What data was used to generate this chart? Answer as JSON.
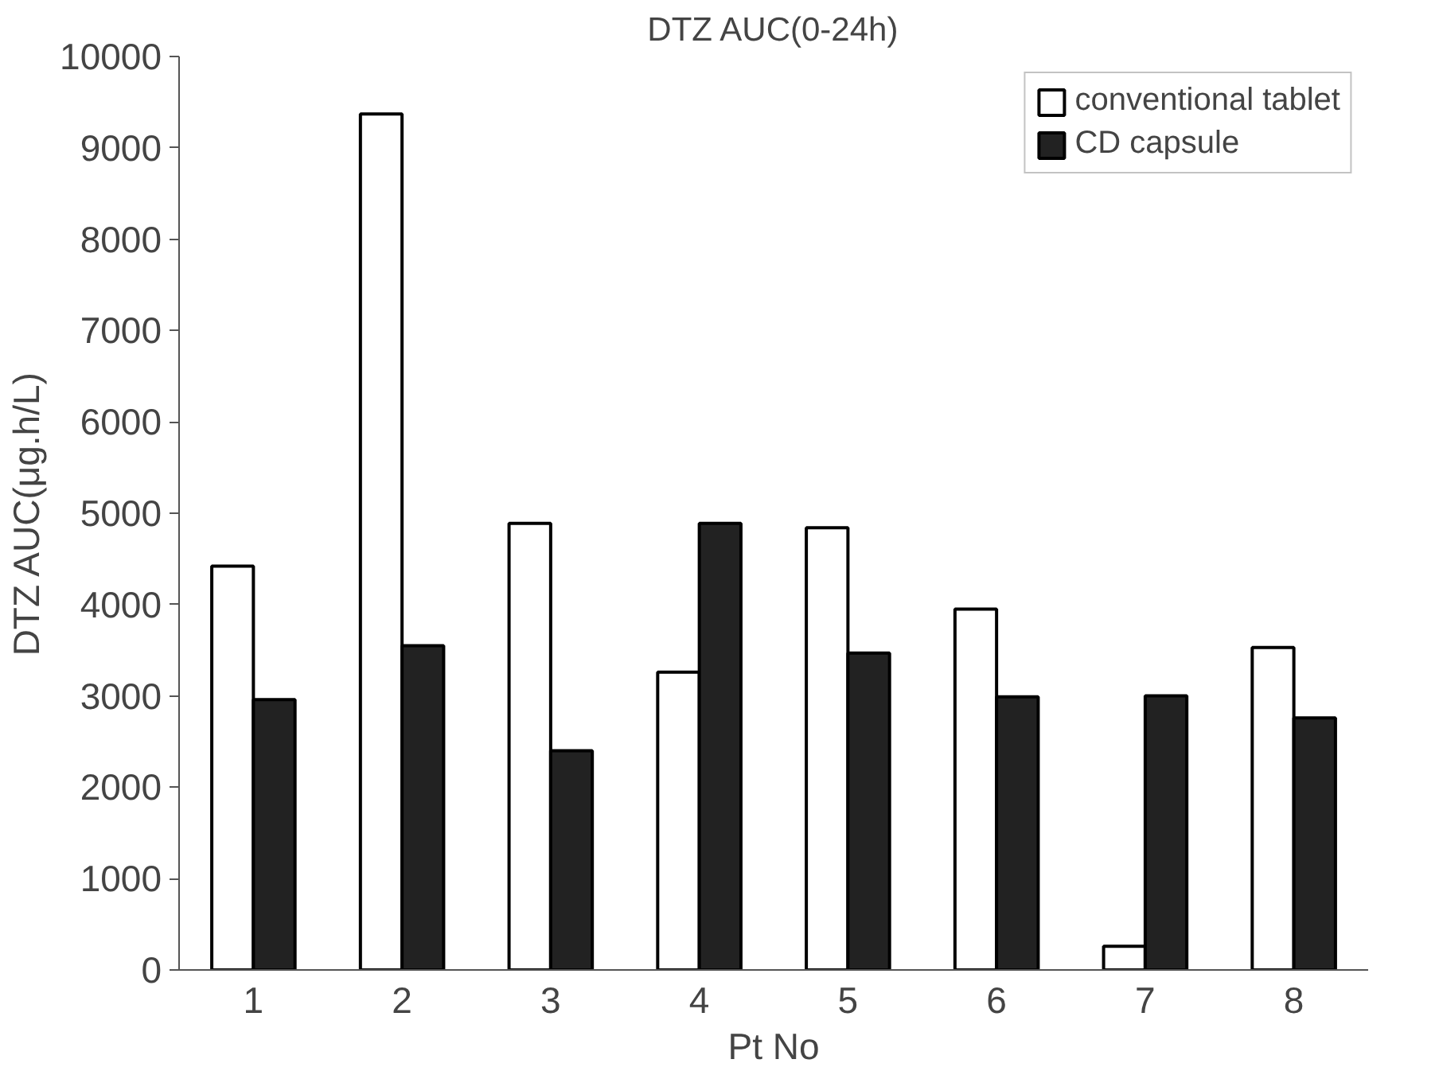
{
  "chart_data": {
    "type": "bar",
    "title": "DTZ AUC(0-24h)",
    "xlabel": "Pt No",
    "ylabel": "DTZ AUC(μg.h/L)",
    "categories": [
      "1",
      "2",
      "3",
      "4",
      "5",
      "6",
      "7",
      "8"
    ],
    "series": [
      {
        "name": "conventional tablet",
        "color": "#ffffff",
        "values": [
          4420,
          9370,
          4890,
          3260,
          4840,
          3950,
          260,
          3530
        ]
      },
      {
        "name": "CD capsule",
        "color": "#222222",
        "values": [
          2960,
          3550,
          2400,
          4890,
          3470,
          2990,
          3000,
          2760
        ]
      }
    ],
    "ylim": [
      0,
      10000
    ],
    "yticks": [
      0,
      1000,
      2000,
      3000,
      4000,
      5000,
      6000,
      7000,
      8000,
      9000,
      10000
    ],
    "grid": false,
    "legend": "top right"
  }
}
